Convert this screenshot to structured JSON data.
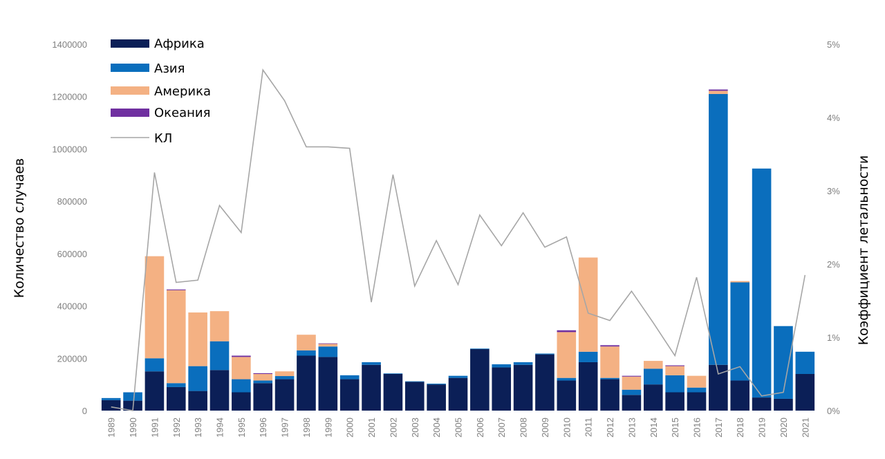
{
  "chart_data": {
    "type": "bar",
    "stacked": true,
    "xlabel": "",
    "ylabel": "Количество случаев",
    "y2label": "Коэффициент летальности",
    "ylim": [
      0,
      1400000
    ],
    "y2lim": [
      0,
      5
    ],
    "y_ticks": [
      "0",
      "200000",
      "400000",
      "600000",
      "800000",
      "1000000",
      "1200000",
      "1400000"
    ],
    "y2_ticks": [
      "0%",
      "1%",
      "2%",
      "3%",
      "4%",
      "5%"
    ],
    "grid": false,
    "legend_position": "top-left",
    "categories": [
      "1989",
      "1990",
      "1991",
      "1992",
      "1993",
      "1994",
      "1995",
      "1996",
      "1997",
      "1998",
      "1999",
      "2000",
      "2001",
      "2002",
      "2003",
      "2004",
      "2005",
      "2006",
      "2007",
      "2008",
      "2009",
      "2010",
      "2011",
      "2012",
      "2013",
      "2014",
      "2015",
      "2016",
      "2017",
      "2018",
      "2019",
      "2020",
      "2021"
    ],
    "series": [
      {
        "name": "Африка",
        "color": "#0b1f57",
        "values": [
          40000,
          38000,
          150000,
          90000,
          75000,
          155000,
          70000,
          105000,
          120000,
          210000,
          205000,
          120000,
          175000,
          140000,
          110000,
          100000,
          125000,
          235000,
          165000,
          175000,
          215000,
          115000,
          185000,
          120000,
          60000,
          100000,
          70000,
          70000,
          175000,
          115000,
          50000,
          45000,
          140000
        ]
      },
      {
        "name": "Азия",
        "color": "#0a6ebd",
        "values": [
          8000,
          32000,
          50000,
          15000,
          95000,
          110000,
          50000,
          10000,
          12000,
          20000,
          40000,
          15000,
          10000,
          2000,
          2000,
          3000,
          8000,
          2000,
          12000,
          10000,
          3000,
          10000,
          40000,
          5000,
          20000,
          60000,
          65000,
          18000,
          1035000,
          375000,
          875000,
          278000,
          85000
        ]
      },
      {
        "name": "Америка",
        "color": "#f4b183",
        "values": [
          0,
          0,
          390000,
          355000,
          205000,
          115000,
          85000,
          25000,
          18000,
          60000,
          10000,
          0,
          0,
          0,
          0,
          0,
          0,
          0,
          0,
          0,
          0,
          175000,
          360000,
          120000,
          50000,
          30000,
          35000,
          45000,
          12000,
          5000,
          0,
          0,
          0
        ]
      },
      {
        "name": "Океания",
        "color": "#7030a0",
        "values": [
          0,
          0,
          0,
          3000,
          0,
          0,
          5000,
          3000,
          0,
          0,
          2000,
          0,
          0,
          0,
          0,
          0,
          0,
          0,
          0,
          0,
          0,
          7000,
          0,
          5000,
          3000,
          0,
          3000,
          0,
          5000,
          0,
          0,
          0,
          0
        ]
      }
    ],
    "line": {
      "name": "КЛ",
      "color": "#a6a6a6",
      "axis": "right",
      "unit": "%",
      "values": [
        0.05,
        0.0,
        3.25,
        1.75,
        1.78,
        2.8,
        2.43,
        4.65,
        4.23,
        3.6,
        3.6,
        3.58,
        1.48,
        3.22,
        1.7,
        2.32,
        1.72,
        2.67,
        2.25,
        2.7,
        2.23,
        2.37,
        1.33,
        1.23,
        1.63,
        1.2,
        0.75,
        1.82,
        0.5,
        0.6,
        0.2,
        0.25,
        1.85
      ]
    }
  }
}
